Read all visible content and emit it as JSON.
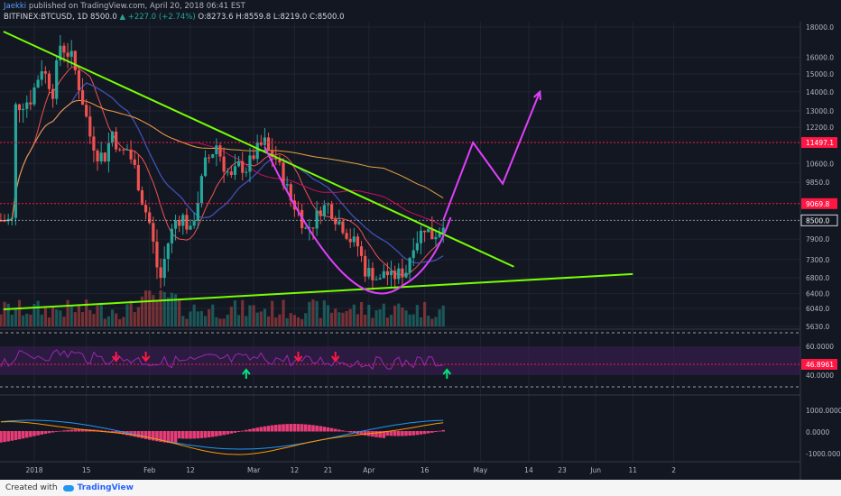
{
  "header": {
    "author": "Jaekki",
    "published": "published on TradingView.com, April 20, 2018 06:41 EST",
    "symbol": "BITFINEX:BTCUSD, 1D",
    "last": "8500.0",
    "change": "+227.0 (+2.74%)",
    "ohlc": "O:8273.6  H:8559.8  L:8219.0  C:8500.0"
  },
  "footer": {
    "created": "Created with",
    "brand": "TradingView"
  },
  "colors": {
    "background": "#131722",
    "up": "#26a69a",
    "down": "#ef5350",
    "trendline": "#76ff03",
    "projection": "#e040fb",
    "resistance": "#ff1744",
    "rsi_band": "#3f1f5a",
    "macd_hist": "#ff4081"
  },
  "chart_data": {
    "type": "candlestick",
    "symbol": "BITFINEX:BTCUSD",
    "interval": "1D",
    "price_axis": [
      "18000.0",
      "16000.0",
      "15000.0",
      "14000.0",
      "13000.0",
      "12200.0",
      "10600.0",
      "9850.0",
      "7900.0",
      "7300.0",
      "6800.0",
      "6400.0",
      "6040.0",
      "5630.0"
    ],
    "price_ticks": [
      18000,
      16000,
      15000,
      14000,
      13000,
      12200,
      10600,
      9850,
      7900,
      7300,
      6800,
      6400,
      6040,
      5630
    ],
    "price_markers": [
      {
        "label": "11497.1",
        "value": 11497.1,
        "color": "#ff1744"
      },
      {
        "label": "9069.8",
        "value": 9069.8,
        "color": "#ff1744"
      },
      {
        "label": "8500.0",
        "value": 8500,
        "color": "#ffffff"
      }
    ],
    "x_axis": [
      {
        "label": "2018",
        "day": 1
      },
      {
        "label": "15",
        "day": 15
      },
      {
        "label": "Feb",
        "day": 32
      },
      {
        "label": "12",
        "day": 43
      },
      {
        "label": "Mar",
        "day": 60
      },
      {
        "label": "12",
        "day": 71
      },
      {
        "label": "21",
        "day": 80
      },
      {
        "label": "Apr",
        "day": 91
      },
      {
        "label": "16",
        "day": 106
      },
      {
        "label": "May",
        "day": 121
      },
      {
        "label": "14",
        "day": 134
      },
      {
        "label": "23",
        "day": 143
      },
      {
        "label": "Jun",
        "day": 152
      },
      {
        "label": "11",
        "day": 162
      },
      {
        "label": "2",
        "day": 173
      }
    ],
    "price_keypoints": [
      [
        -4,
        13200
      ],
      [
        0,
        13600
      ],
      [
        3,
        15400
      ],
      [
        6,
        14000
      ],
      [
        8,
        16800
      ],
      [
        11,
        16000
      ],
      [
        14,
        13500
      ],
      [
        16,
        11800
      ],
      [
        18,
        11000
      ],
      [
        20,
        10900
      ],
      [
        22,
        12000
      ],
      [
        24,
        11000
      ],
      [
        26,
        11200
      ],
      [
        28,
        10400
      ],
      [
        30,
        9200
      ],
      [
        32,
        8400
      ],
      [
        34,
        7100
      ],
      [
        35,
        6800
      ],
      [
        37,
        7800
      ],
      [
        39,
        8500
      ],
      [
        41,
        8600
      ],
      [
        43,
        8100
      ],
      [
        45,
        9200
      ],
      [
        47,
        10600
      ],
      [
        49,
        11100
      ],
      [
        50,
        11400
      ],
      [
        52,
        10500
      ],
      [
        54,
        10000
      ],
      [
        56,
        10500
      ],
      [
        58,
        10400
      ],
      [
        61,
        11200
      ],
      [
        63,
        11500
      ],
      [
        64,
        11100
      ],
      [
        66,
        10800
      ],
      [
        68,
        10000
      ],
      [
        70,
        9200
      ],
      [
        72,
        8800
      ],
      [
        74,
        8200
      ],
      [
        76,
        8400
      ],
      [
        78,
        8900
      ],
      [
        80,
        9000
      ],
      [
        82,
        8600
      ],
      [
        84,
        8300
      ],
      [
        86,
        7900
      ],
      [
        88,
        7700
      ],
      [
        90,
        7000
      ],
      [
        92,
        6900
      ],
      [
        94,
        6700
      ],
      [
        95,
        7000
      ],
      [
        97,
        6800
      ],
      [
        99,
        6900
      ],
      [
        101,
        7000
      ],
      [
        103,
        7800
      ],
      [
        104,
        7900
      ],
      [
        106,
        8300
      ],
      [
        108,
        8000
      ],
      [
        110,
        8200
      ],
      [
        111,
        8500
      ]
    ],
    "rsi_axis": [
      "60.0000",
      "40.0000"
    ],
    "rsi_value_label": "46.8961",
    "rsi_markers": [
      {
        "day": 23,
        "type": "down"
      },
      {
        "day": 31,
        "type": "down"
      },
      {
        "day": 58,
        "type": "up"
      },
      {
        "day": 72,
        "type": "down"
      },
      {
        "day": 82,
        "type": "down"
      },
      {
        "day": 112,
        "type": "up"
      }
    ],
    "macd_axis": [
      "1000.0000",
      "0.0000",
      "-1000.0000"
    ],
    "annotations": [
      {
        "type": "trendline",
        "from": [
          0,
          17200
        ],
        "to": [
          110,
          8500
        ],
        "extends_to": [
          130,
          7100
        ]
      },
      {
        "type": "trendline",
        "from": [
          0,
          5850
        ],
        "to": [
          162,
          6900
        ]
      },
      {
        "type": "cup_curve"
      },
      {
        "type": "projection_arrow",
        "path": [
          [
            111,
            8500
          ],
          [
            119,
            11500
          ],
          [
            127,
            9800
          ],
          [
            137,
            14000
          ]
        ]
      }
    ]
  }
}
